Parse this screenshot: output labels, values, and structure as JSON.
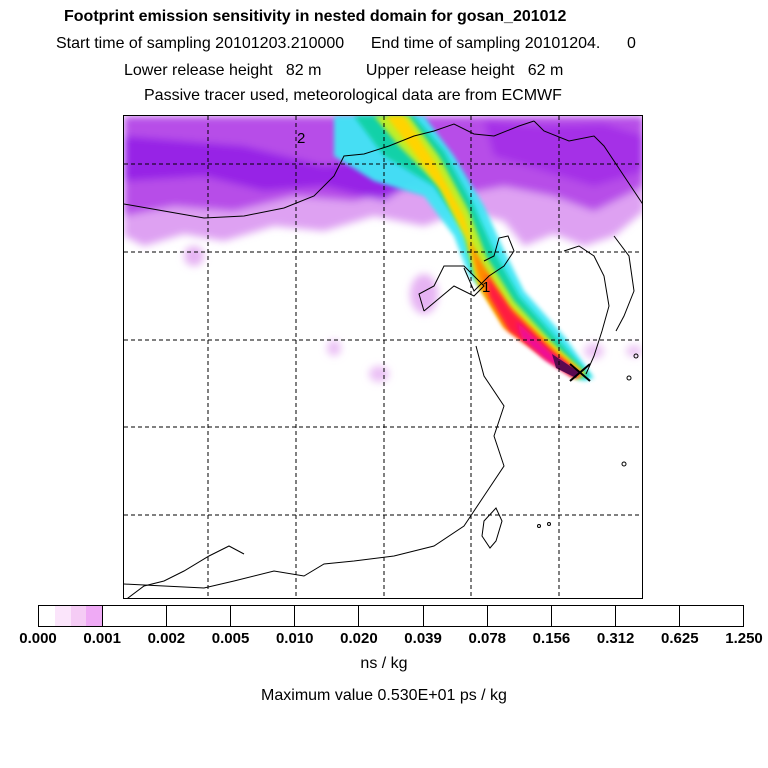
{
  "header": {
    "title": "Footprint emission sensitivity in nested domain for gosan_201012",
    "sampling_line": "Start time of sampling 20101203.210000      End time of sampling 20101204.      0",
    "release_line": "Lower release height   82 m          Upper release height   62 m",
    "tracer_line": "Passive tracer used, meteorological data are from ECMWF"
  },
  "map": {
    "markers": [
      {
        "label": "1"
      },
      {
        "label": "2"
      }
    ],
    "release_marker": "x-icon"
  },
  "colorbar": {
    "tick_labels": [
      "0.000",
      "0.001",
      "0.002",
      "0.005",
      "0.010",
      "0.020",
      "0.039",
      "0.078",
      "0.156",
      "0.312",
      "0.625",
      "1.250"
    ],
    "colors": [
      "#ffffff",
      "#fbe5fb",
      "#f5ccf5",
      "#efaaf5",
      "#e08aee",
      "#cd5ae6",
      "#b52ce6",
      "#9a0ae0",
      "#7d0ae0",
      "#6010e8",
      "#4826f0",
      "#3246f5",
      "#2266f5",
      "#1a86f5",
      "#14a6f5",
      "#10c6f0",
      "#00ffff",
      "#10ecd0",
      "#10e0b0",
      "#10d490",
      "#10c860",
      "#30dc28",
      "#70e818",
      "#a8f018",
      "#d8f010",
      "#f2f210",
      "#ffe400",
      "#ffc000",
      "#ff9a00",
      "#ff7000",
      "#ff4000",
      "#ff1010",
      "#f00a5a",
      "#f20a82",
      "#f20aa8",
      "#e60ab0",
      "#c80aa0",
      "#a8088a",
      "#860876",
      "#5a0a50"
    ]
  },
  "units": "ns / kg",
  "max_value_line": "Maximum value  0.530E+01 ps / kg"
}
